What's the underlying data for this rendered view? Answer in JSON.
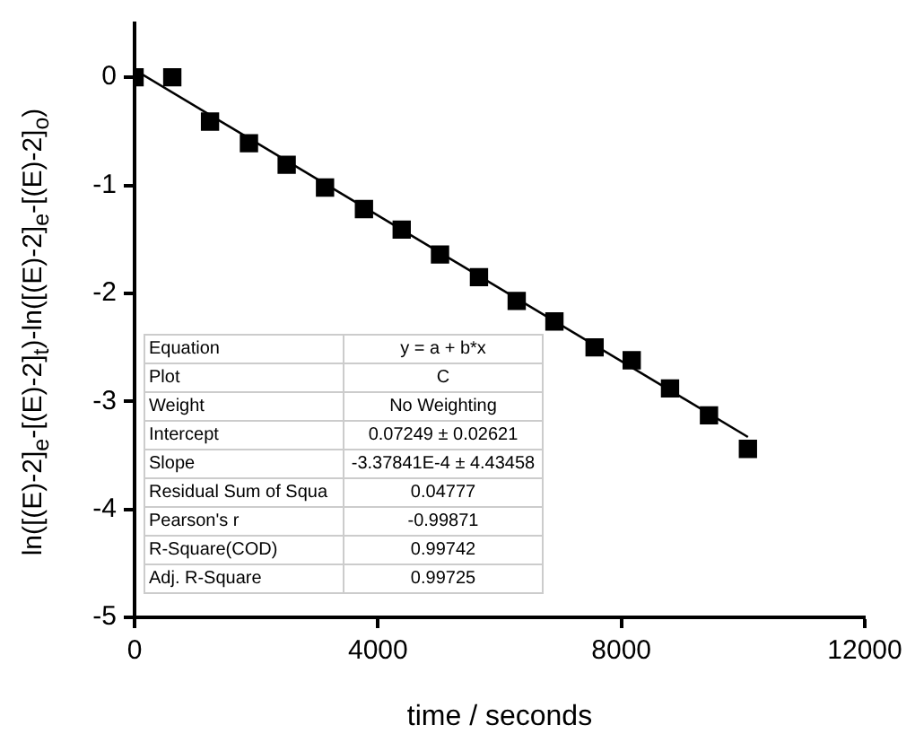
{
  "chart_data": {
    "type": "scatter",
    "xlabel": "time / seconds",
    "ylabel": "ln([(E)-2]$_{e}$-[(E)-2]$_{t}$)-ln([(E)-2]$_{e}$-[(E)-2]$_{o}$)",
    "series": [
      {
        "marker": "square",
        "color": "#000000",
        "x": [
          0,
          620,
          1240,
          1880,
          2500,
          3130,
          3770,
          4390,
          5020,
          5660,
          6280,
          6900,
          7560,
          8170,
          8800,
          9440,
          10080
        ],
        "values": [
          0,
          0,
          -0.41,
          -0.61,
          -0.81,
          -1.02,
          -1.22,
          -1.41,
          -1.64,
          -1.85,
          -2.07,
          -2.26,
          -2.5,
          -2.62,
          -2.88,
          -3.13,
          -3.44
        ]
      },
      {
        "type": "line",
        "marker": "none",
        "color": "#000000",
        "x": [
          0,
          10080
        ],
        "values": [
          0.07,
          -3.33
        ]
      }
    ],
    "xlim": [
      0,
      12000
    ],
    "xticks": [
      0,
      4000,
      8000,
      12000
    ],
    "ylim": [
      -5,
      0.5
    ],
    "yticks": [
      -5,
      -4,
      -3,
      -2,
      -1,
      0
    ],
    "grid": false,
    "legend": false,
    "annotations": [
      "Equation",
      "y = a + b*x",
      "Plot",
      "C",
      "Weight",
      "No Weighting",
      "Intercept",
      "0.07249 ± 0.02621",
      "Slope",
      "-3.37841E-4 ± 4.43458",
      "Residual Sum of Squa",
      "0.04777",
      "Pearson's r",
      "-0.99871",
      "R-Square(COD)",
      "0.99742",
      "Adj. R-Square",
      "0.99725"
    ]
  }
}
